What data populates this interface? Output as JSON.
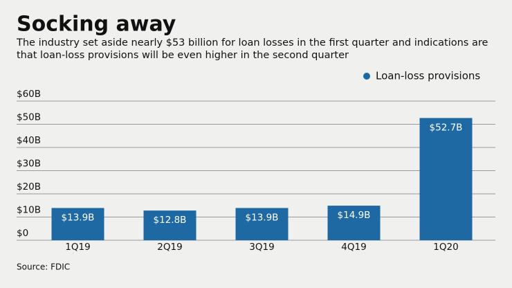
{
  "chart_data": {
    "type": "bar",
    "title": "Socking away",
    "subtitle": [
      "The industry set aside nearly $53 billion for loan losses in the first quarter and indications are",
      "that loan-loss provisions will be even higher in the second quarter"
    ],
    "source": "Source: FDIC",
    "categories": [
      "1Q19",
      "2Q19",
      "3Q19",
      "4Q19",
      "1Q20"
    ],
    "series": [
      {
        "name": "Loan-loss provisions",
        "color": "#1e68a4",
        "values": [
          13.9,
          12.8,
          13.9,
          14.9,
          52.7
        ],
        "value_labels": [
          "$13.9B",
          "$12.8B",
          "$13.9B",
          "$14.9B",
          "$52.7B"
        ]
      }
    ],
    "ylim": [
      0,
      60
    ],
    "yticks": [
      {
        "value": 0,
        "label": "$0"
      },
      {
        "value": 10,
        "label": "$10B"
      },
      {
        "value": 20,
        "label": "$20B"
      },
      {
        "value": 30,
        "label": "$30B"
      },
      {
        "value": 40,
        "label": "$40B"
      },
      {
        "value": 50,
        "label": "$50B"
      },
      {
        "value": 60,
        "label": "$60B"
      }
    ],
    "grid": true,
    "legend": "top-right"
  }
}
